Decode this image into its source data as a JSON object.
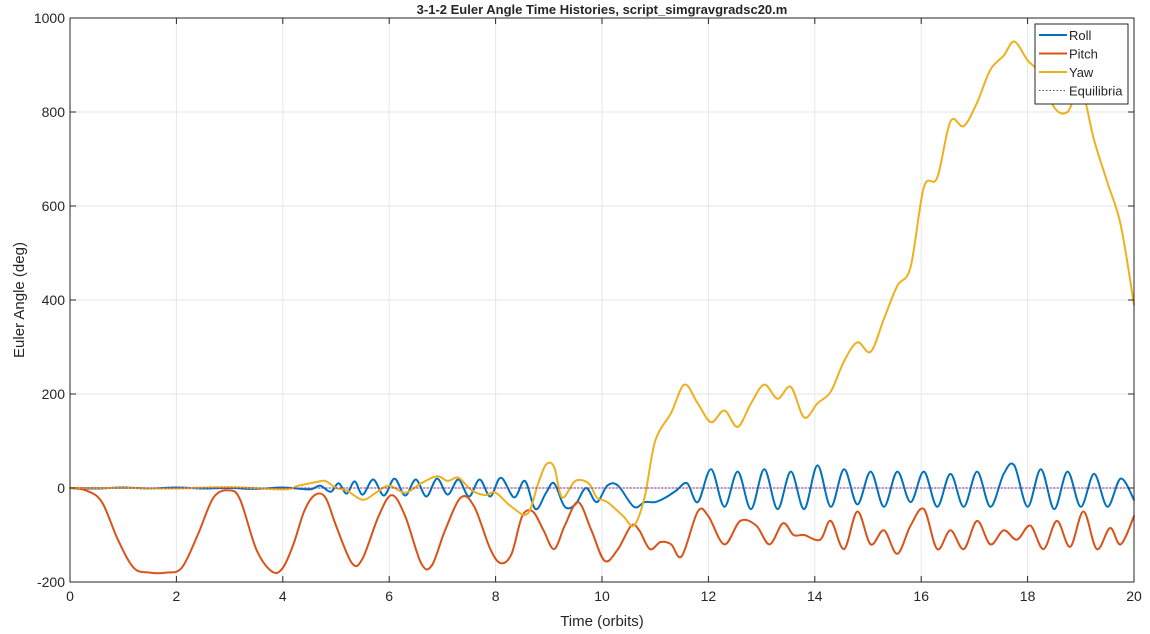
{
  "chart_data": {
    "type": "line",
    "title": "3-1-2 Euler Angle Time Histories, script_simgravgradsc20.m",
    "xlabel": "Time (orbits)",
    "ylabel": "Euler Angle (deg)",
    "xlim": [
      0,
      20
    ],
    "ylim": [
      -200,
      1000
    ],
    "xticks": [
      "0",
      "2",
      "4",
      "6",
      "8",
      "10",
      "12",
      "14",
      "16",
      "18",
      "20"
    ],
    "yticks": [
      "-200",
      "0",
      "200",
      "400",
      "600",
      "800",
      "1000"
    ],
    "grid": true,
    "legend_position": "top-right",
    "series": [
      {
        "name": "Roll",
        "color": "#0072BD",
        "style": "solid",
        "points": [
          [
            0,
            0
          ],
          [
            0.5,
            -1
          ],
          [
            1,
            1
          ],
          [
            1.5,
            -1
          ],
          [
            2,
            1
          ],
          [
            2.5,
            -1
          ],
          [
            3,
            0
          ],
          [
            3.5,
            -2
          ],
          [
            4,
            1
          ],
          [
            4.5,
            -3
          ],
          [
            4.7,
            5
          ],
          [
            4.9,
            -8
          ],
          [
            5.05,
            10
          ],
          [
            5.2,
            -12
          ],
          [
            5.35,
            14
          ],
          [
            5.5,
            -14
          ],
          [
            5.7,
            18
          ],
          [
            5.9,
            -16
          ],
          [
            6.1,
            20
          ],
          [
            6.3,
            -16
          ],
          [
            6.5,
            18
          ],
          [
            6.7,
            -18
          ],
          [
            6.9,
            20
          ],
          [
            7.1,
            -14
          ],
          [
            7.3,
            18
          ],
          [
            7.5,
            -18
          ],
          [
            7.7,
            18
          ],
          [
            7.9,
            -18
          ],
          [
            8.1,
            22
          ],
          [
            8.35,
            -20
          ],
          [
            8.55,
            15
          ],
          [
            8.75,
            -45
          ],
          [
            8.95,
            -10
          ],
          [
            9.1,
            10
          ],
          [
            9.3,
            -40
          ],
          [
            9.5,
            -35
          ],
          [
            9.7,
            0
          ],
          [
            9.9,
            -30
          ],
          [
            10.1,
            5
          ],
          [
            10.3,
            5
          ],
          [
            10.6,
            -40
          ],
          [
            10.8,
            -30
          ],
          [
            11,
            -30
          ],
          [
            11.2,
            -20
          ],
          [
            11.4,
            -5
          ],
          [
            11.6,
            10
          ],
          [
            11.8,
            -30
          ],
          [
            12.05,
            40
          ],
          [
            12.3,
            -40
          ],
          [
            12.55,
            35
          ],
          [
            12.8,
            -45
          ],
          [
            13.05,
            40
          ],
          [
            13.3,
            -45
          ],
          [
            13.55,
            35
          ],
          [
            13.8,
            -45
          ],
          [
            14.05,
            48
          ],
          [
            14.3,
            -40
          ],
          [
            14.55,
            40
          ],
          [
            14.8,
            -35
          ],
          [
            15.05,
            35
          ],
          [
            15.3,
            -40
          ],
          [
            15.55,
            35
          ],
          [
            15.8,
            -30
          ],
          [
            16.05,
            35
          ],
          [
            16.3,
            -40
          ],
          [
            16.55,
            30
          ],
          [
            16.8,
            -40
          ],
          [
            17.05,
            35
          ],
          [
            17.3,
            -40
          ],
          [
            17.55,
            30
          ],
          [
            17.75,
            48
          ],
          [
            18,
            -40
          ],
          [
            18.25,
            40
          ],
          [
            18.5,
            -45
          ],
          [
            18.75,
            35
          ],
          [
            19,
            -40
          ],
          [
            19.25,
            30
          ],
          [
            19.5,
            -40
          ],
          [
            19.75,
            20
          ],
          [
            20,
            -25
          ]
        ]
      },
      {
        "name": "Pitch",
        "color": "#D95319",
        "style": "solid",
        "points": [
          [
            0,
            0
          ],
          [
            0.3,
            -5
          ],
          [
            0.6,
            -30
          ],
          [
            0.9,
            -110
          ],
          [
            1.2,
            -170
          ],
          [
            1.5,
            -180
          ],
          [
            1.8,
            -180
          ],
          [
            2.1,
            -170
          ],
          [
            2.4,
            -100
          ],
          [
            2.7,
            -20
          ],
          [
            3.0,
            -5
          ],
          [
            3.2,
            -25
          ],
          [
            3.5,
            -130
          ],
          [
            3.8,
            -178
          ],
          [
            4.0,
            -170
          ],
          [
            4.2,
            -120
          ],
          [
            4.4,
            -50
          ],
          [
            4.6,
            -15
          ],
          [
            4.8,
            -20
          ],
          [
            5.0,
            -80
          ],
          [
            5.3,
            -160
          ],
          [
            5.5,
            -150
          ],
          [
            5.8,
            -60
          ],
          [
            6.05,
            -15
          ],
          [
            6.3,
            -60
          ],
          [
            6.6,
            -160
          ],
          [
            6.8,
            -165
          ],
          [
            7.05,
            -90
          ],
          [
            7.35,
            -20
          ],
          [
            7.6,
            -40
          ],
          [
            7.9,
            -130
          ],
          [
            8.1,
            -160
          ],
          [
            8.3,
            -140
          ],
          [
            8.5,
            -60
          ],
          [
            8.7,
            -50
          ],
          [
            8.9,
            -90
          ],
          [
            9.1,
            -130
          ],
          [
            9.3,
            -80
          ],
          [
            9.55,
            -30
          ],
          [
            9.8,
            -90
          ],
          [
            10.05,
            -155
          ],
          [
            10.3,
            -130
          ],
          [
            10.55,
            -80
          ],
          [
            10.7,
            -90
          ],
          [
            10.9,
            -130
          ],
          [
            11.1,
            -115
          ],
          [
            11.3,
            -120
          ],
          [
            11.5,
            -145
          ],
          [
            11.8,
            -50
          ],
          [
            12.0,
            -60
          ],
          [
            12.3,
            -120
          ],
          [
            12.6,
            -70
          ],
          [
            12.9,
            -80
          ],
          [
            13.15,
            -120
          ],
          [
            13.4,
            -75
          ],
          [
            13.6,
            -100
          ],
          [
            13.8,
            -100
          ],
          [
            14.1,
            -110
          ],
          [
            14.3,
            -70
          ],
          [
            14.55,
            -130
          ],
          [
            14.8,
            -50
          ],
          [
            15.05,
            -120
          ],
          [
            15.3,
            -90
          ],
          [
            15.55,
            -140
          ],
          [
            15.8,
            -80
          ],
          [
            16.05,
            -45
          ],
          [
            16.3,
            -130
          ],
          [
            16.55,
            -90
          ],
          [
            16.8,
            -130
          ],
          [
            17.05,
            -70
          ],
          [
            17.3,
            -120
          ],
          [
            17.55,
            -90
          ],
          [
            17.8,
            -110
          ],
          [
            18.05,
            -80
          ],
          [
            18.3,
            -130
          ],
          [
            18.55,
            -70
          ],
          [
            18.8,
            -125
          ],
          [
            19.05,
            -50
          ],
          [
            19.3,
            -130
          ],
          [
            19.55,
            -85
          ],
          [
            19.75,
            -120
          ],
          [
            20,
            -60
          ]
        ]
      },
      {
        "name": "Yaw",
        "color": "#EDB120",
        "style": "solid",
        "points": [
          [
            0,
            0
          ],
          [
            1,
            0
          ],
          [
            2,
            -1
          ],
          [
            3,
            2
          ],
          [
            4,
            -3
          ],
          [
            4.3,
            5
          ],
          [
            4.6,
            12
          ],
          [
            4.8,
            15
          ],
          [
            5.0,
            0
          ],
          [
            5.2,
            -5
          ],
          [
            5.5,
            -25
          ],
          [
            5.75,
            -10
          ],
          [
            6.0,
            5
          ],
          [
            6.3,
            -10
          ],
          [
            6.6,
            10
          ],
          [
            6.9,
            25
          ],
          [
            7.1,
            15
          ],
          [
            7.3,
            22
          ],
          [
            7.55,
            -5
          ],
          [
            7.8,
            -15
          ],
          [
            8.0,
            -10
          ],
          [
            8.3,
            -40
          ],
          [
            8.6,
            -55
          ],
          [
            8.8,
            10
          ],
          [
            8.95,
            50
          ],
          [
            9.1,
            45
          ],
          [
            9.25,
            -20
          ],
          [
            9.5,
            15
          ],
          [
            9.75,
            10
          ],
          [
            9.9,
            -20
          ],
          [
            10.1,
            -30
          ],
          [
            10.4,
            -60
          ],
          [
            10.6,
            -80
          ],
          [
            10.8,
            -20
          ],
          [
            11.0,
            100
          ],
          [
            11.3,
            160
          ],
          [
            11.55,
            220
          ],
          [
            11.8,
            180
          ],
          [
            12.05,
            140
          ],
          [
            12.3,
            165
          ],
          [
            12.55,
            130
          ],
          [
            12.8,
            180
          ],
          [
            13.05,
            220
          ],
          [
            13.3,
            190
          ],
          [
            13.55,
            215
          ],
          [
            13.8,
            150
          ],
          [
            14.05,
            180
          ],
          [
            14.3,
            205
          ],
          [
            14.55,
            270
          ],
          [
            14.8,
            310
          ],
          [
            15.05,
            290
          ],
          [
            15.3,
            360
          ],
          [
            15.55,
            430
          ],
          [
            15.8,
            470
          ],
          [
            16.05,
            640
          ],
          [
            16.3,
            660
          ],
          [
            16.55,
            780
          ],
          [
            16.8,
            770
          ],
          [
            17.05,
            820
          ],
          [
            17.3,
            890
          ],
          [
            17.55,
            920
          ],
          [
            17.75,
            950
          ],
          [
            18.0,
            910
          ],
          [
            18.25,
            880
          ],
          [
            18.5,
            810
          ],
          [
            18.75,
            800
          ],
          [
            19.0,
            850
          ],
          [
            19.25,
            740
          ],
          [
            19.5,
            650
          ],
          [
            19.75,
            560
          ],
          [
            20,
            390
          ]
        ]
      },
      {
        "name": "Equilibria",
        "color": "#7E2F8E",
        "style": "dotted",
        "points": [
          [
            0,
            0
          ],
          [
            20,
            0
          ]
        ]
      }
    ]
  }
}
